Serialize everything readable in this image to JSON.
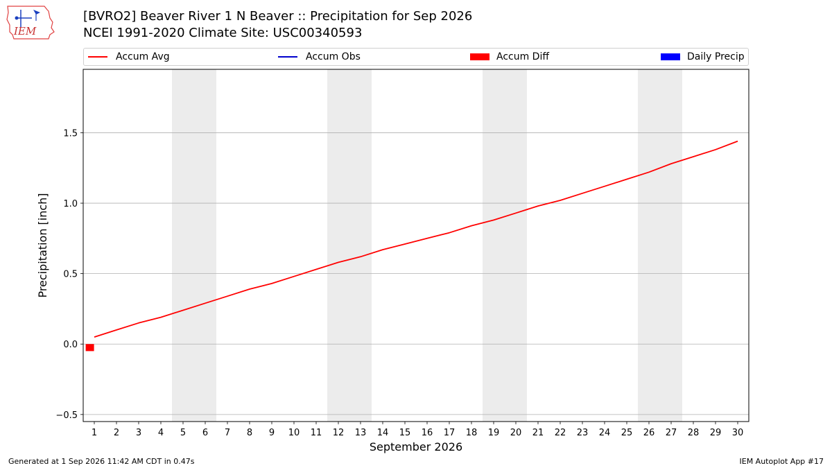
{
  "header": {
    "title_line1": "[BVRO2] Beaver River 1 N Beaver :: Precipitation for Sep 2026",
    "title_line2": "NCEI 1991-2020 Climate Site: USC00340593",
    "logo_text": "IEM"
  },
  "legend": {
    "items": [
      {
        "label": "Accum Avg",
        "kind": "line",
        "color": "#ff0000"
      },
      {
        "label": "Accum Obs",
        "kind": "line",
        "color": "#0000cc"
      },
      {
        "label": "Accum Diff",
        "kind": "box",
        "color": "#ff0000"
      },
      {
        "label": "Daily Precip",
        "kind": "box",
        "color": "#0000ff"
      }
    ],
    "placement": "top"
  },
  "footer": {
    "left": "Generated at 1 Sep 2026 11:42 AM CDT in 0.47s",
    "right": "IEM Autoplot App #17"
  },
  "chart_data": {
    "type": "line",
    "xlabel": "September 2026",
    "ylabel": "Precipitation [inch]",
    "x": [
      1,
      2,
      3,
      4,
      5,
      6,
      7,
      8,
      9,
      10,
      11,
      12,
      13,
      14,
      15,
      16,
      17,
      18,
      19,
      20,
      21,
      22,
      23,
      24,
      25,
      26,
      27,
      28,
      29,
      30
    ],
    "xlim": [
      0.5,
      30.5
    ],
    "ylim": [
      -0.55,
      1.95
    ],
    "yticks": [
      -0.5,
      0.0,
      0.5,
      1.0,
      1.5
    ],
    "ytick_labels": [
      "−0.5",
      "0.0",
      "0.5",
      "1.0",
      "1.5"
    ],
    "grid": "y",
    "weekend_bands": [
      [
        4.5,
        6.5
      ],
      [
        11.5,
        13.5
      ],
      [
        18.5,
        20.5
      ],
      [
        25.5,
        27.5
      ]
    ],
    "series": [
      {
        "name": "Accum Avg",
        "color": "#ff0000",
        "values": [
          0.05,
          0.1,
          0.15,
          0.19,
          0.24,
          0.29,
          0.34,
          0.39,
          0.43,
          0.48,
          0.53,
          0.58,
          0.62,
          0.67,
          0.71,
          0.75,
          0.79,
          0.84,
          0.88,
          0.93,
          0.98,
          1.02,
          1.07,
          1.12,
          1.17,
          1.22,
          1.28,
          1.33,
          1.38,
          1.44
        ]
      }
    ],
    "diff_bars": [
      {
        "x": 0.8,
        "value": -0.05,
        "color": "#ff0000"
      }
    ]
  }
}
